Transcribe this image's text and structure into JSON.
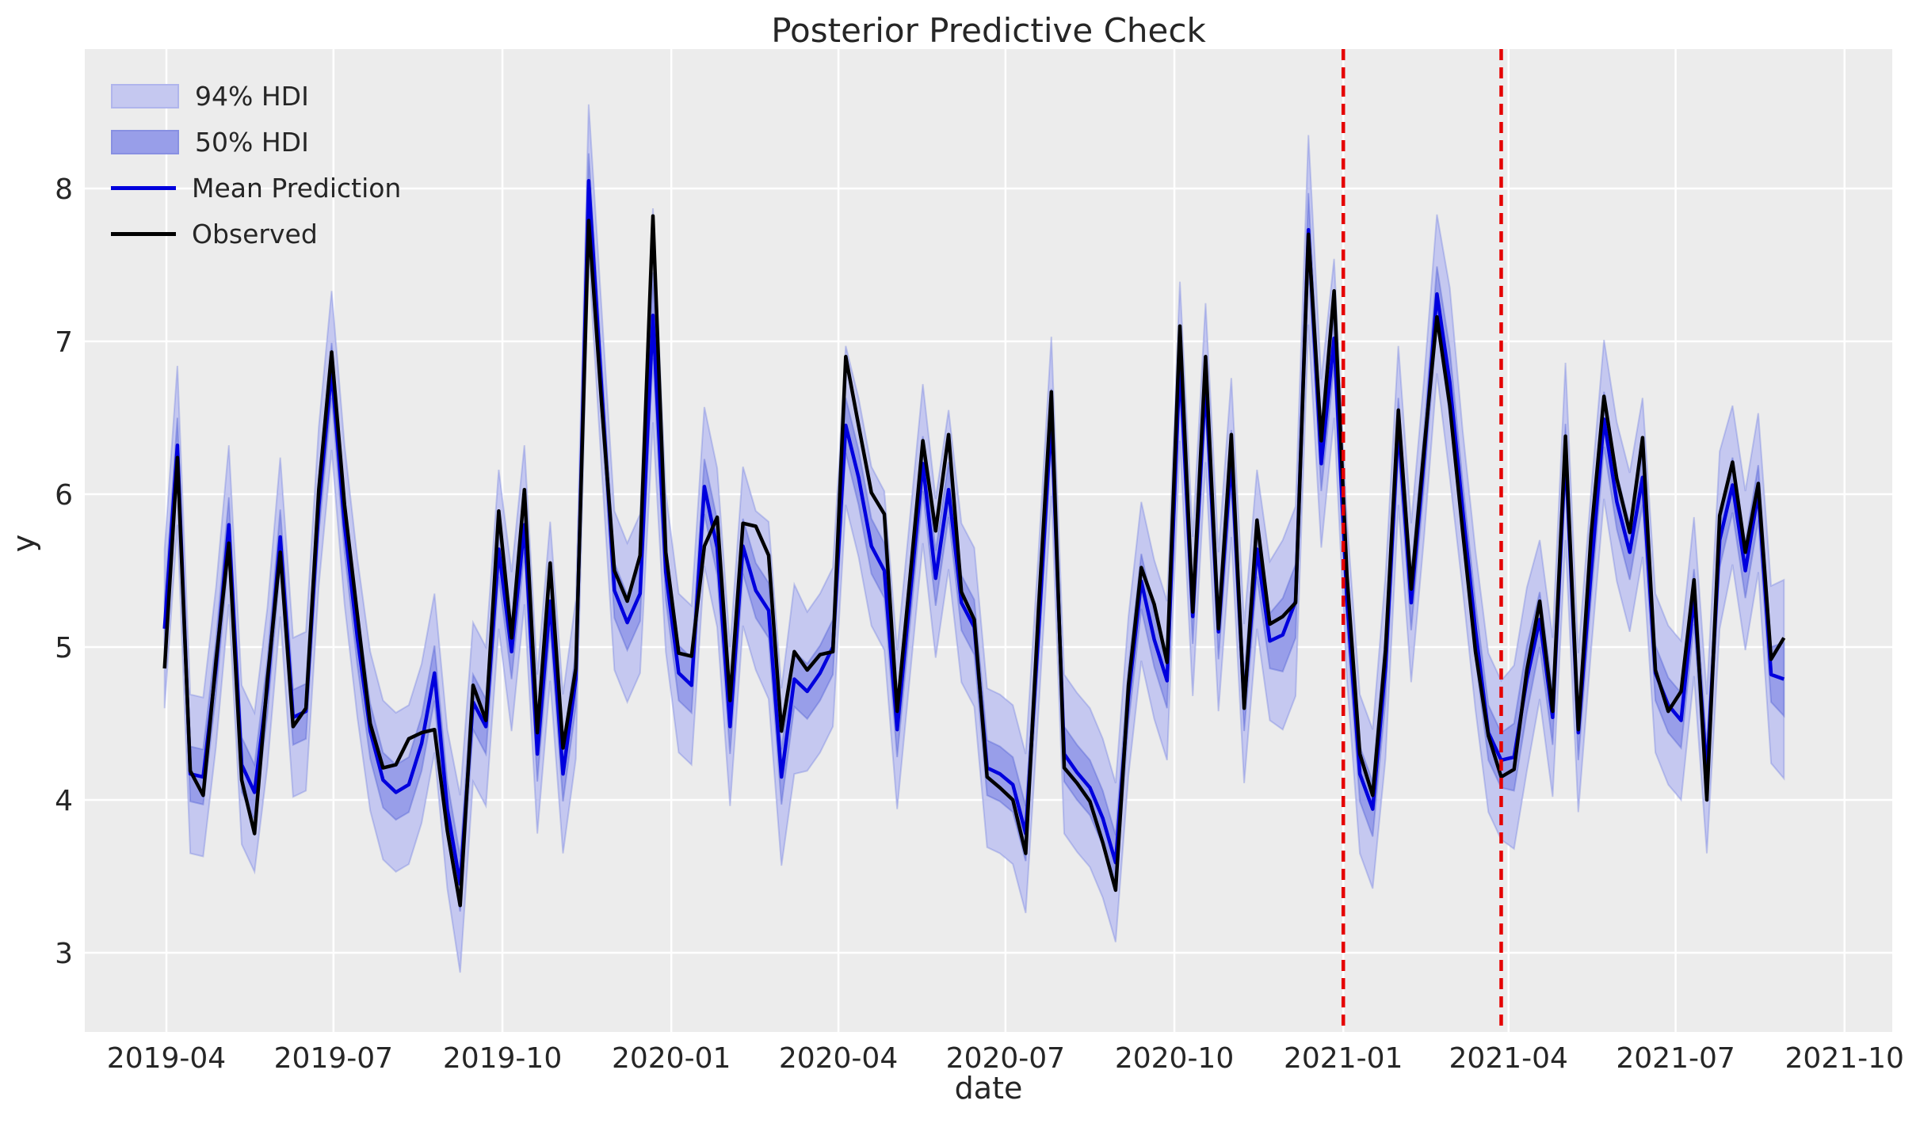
{
  "title": "Posterior Predictive Check",
  "axes": {
    "xlabel": "date",
    "ylabel": "y",
    "x_tick_labels": [
      "2019-04",
      "2019-07",
      "2019-10",
      "2020-01",
      "2020-04",
      "2020-07",
      "2020-10",
      "2021-01",
      "2021-04",
      "2021-07",
      "2021-10"
    ],
    "y_tick_labels": [
      "3",
      "4",
      "5",
      "6",
      "7",
      "8"
    ]
  },
  "legend": {
    "items": [
      {
        "label": "94% HDI",
        "type": "band",
        "fill": "#c5c8f0",
        "edge": "#b0b5ec"
      },
      {
        "label": "50% HDI",
        "type": "band",
        "fill": "#989ee9",
        "edge": "#8890e2"
      },
      {
        "label": "Mean Prediction",
        "type": "line",
        "color": "#0000dd"
      },
      {
        "label": "Observed",
        "type": "line",
        "color": "#000000"
      }
    ]
  },
  "colors": {
    "plot_bg": "#ececec",
    "grid": "#ffffff",
    "observed": "#000000",
    "mean": "#0000dd",
    "hdi94_fill": "#c5c8f0",
    "hdi94_edge": "rgba(90,105,220,0.30)",
    "hdi50_fill": "#989ee9",
    "hdi50_edge": "rgba(70,85,210,0.35)",
    "vline": "#e50000",
    "text": "#262626"
  },
  "chart_data": {
    "type": "line",
    "title": "Posterior Predictive Check",
    "xlabel": "date",
    "ylabel": "y",
    "grid": true,
    "legend_position": "upper left",
    "ylim": [
      2.48,
      8.91
    ],
    "y_ticks": [
      3,
      4,
      5,
      6,
      7,
      8
    ],
    "x_tick_labels": [
      "2019-04",
      "2019-07",
      "2019-10",
      "2020-01",
      "2020-04",
      "2020-07",
      "2020-10",
      "2021-01",
      "2021-04",
      "2021-07",
      "2021-10"
    ],
    "x_tick_day_offsets": [
      1,
      92,
      184,
      276,
      367,
      458,
      550,
      642,
      732,
      823,
      915
    ],
    "x_start_date": "2019-03-31",
    "x_end_date": "2021-08-29",
    "x_freq_days": 7,
    "n_points": 127,
    "vlines": [
      {
        "date": "2021-01-01",
        "day_offset": 642,
        "color": "#e50000",
        "style": "dashed"
      },
      {
        "date": "2021-03-28",
        "day_offset": 728,
        "color": "#e50000",
        "style": "dashed"
      }
    ],
    "series": [
      {
        "name": "Observed",
        "color": "#000000",
        "values": [
          4.86,
          6.24,
          4.19,
          4.03,
          4.91,
          5.68,
          4.13,
          3.78,
          4.79,
          5.62,
          4.48,
          4.6,
          6.03,
          6.93,
          5.93,
          5.21,
          4.5,
          4.21,
          4.23,
          4.4,
          4.44,
          4.46,
          3.8,
          3.31,
          4.75,
          4.52,
          5.89,
          5.06,
          6.03,
          4.44,
          5.55,
          4.34,
          4.86,
          7.79,
          6.6,
          5.5,
          5.3,
          5.6,
          7.82,
          5.62,
          4.96,
          4.94,
          5.66,
          5.85,
          4.65,
          5.81,
          5.79,
          5.6,
          4.45,
          4.97,
          4.85,
          4.95,
          4.97,
          6.9,
          6.45,
          6.01,
          5.87,
          4.58,
          5.45,
          6.35,
          5.76,
          6.39,
          5.36,
          5.18,
          4.15,
          4.08,
          4.0,
          3.65,
          5.25,
          6.67,
          4.21,
          4.11,
          3.99,
          3.72,
          3.41,
          4.75,
          5.52,
          5.28,
          4.9,
          7.1,
          5.23,
          6.9,
          5.12,
          6.39,
          4.6,
          5.83,
          5.15,
          5.2,
          5.29,
          7.7,
          6.35,
          7.33,
          5.47,
          4.3,
          4.03,
          4.98,
          6.55,
          5.38,
          6.3,
          7.16,
          6.58,
          5.76,
          4.97,
          4.42,
          4.15,
          4.2,
          4.85,
          5.3,
          4.58,
          6.38,
          4.46,
          5.74,
          6.64,
          6.1,
          5.75,
          6.37,
          4.85,
          4.58,
          4.71,
          5.44,
          4.0,
          5.86,
          6.21,
          5.62,
          6.07,
          4.92,
          5.06
        ]
      },
      {
        "name": "Mean Prediction",
        "color": "#0000dd",
        "values": [
          5.12,
          6.32,
          4.17,
          4.15,
          4.87,
          5.8,
          4.23,
          4.05,
          4.74,
          5.72,
          4.54,
          4.58,
          5.92,
          6.81,
          5.8,
          5.06,
          4.45,
          4.13,
          4.05,
          4.1,
          4.37,
          4.83,
          3.94,
          3.45,
          4.64,
          4.48,
          5.64,
          4.97,
          5.8,
          4.3,
          5.3,
          4.17,
          4.79,
          8.05,
          6.7,
          5.37,
          5.16,
          5.35,
          7.17,
          5.49,
          4.83,
          4.75,
          6.05,
          5.65,
          4.48,
          5.66,
          5.37,
          5.24,
          4.15,
          4.79,
          4.71,
          4.83,
          5.0,
          6.45,
          6.11,
          5.66,
          5.5,
          4.46,
          5.33,
          6.2,
          5.45,
          6.03,
          5.29,
          5.13,
          4.21,
          4.17,
          4.1,
          3.78,
          5.1,
          6.51,
          4.3,
          4.18,
          4.08,
          3.88,
          3.59,
          4.68,
          5.43,
          5.05,
          4.78,
          6.87,
          5.2,
          6.73,
          5.1,
          6.24,
          4.63,
          5.64,
          5.04,
          5.08,
          5.3,
          7.73,
          6.2,
          7.02,
          5.31,
          4.17,
          3.94,
          4.87,
          6.45,
          5.29,
          6.24,
          7.31,
          6.73,
          5.9,
          5.11,
          4.44,
          4.26,
          4.28,
          4.79,
          5.18,
          4.54,
          6.28,
          4.44,
          5.5,
          6.49,
          5.95,
          5.62,
          6.11,
          4.83,
          4.62,
          4.52,
          5.33,
          4.17,
          5.7,
          6.06,
          5.5,
          6.01,
          4.82,
          4.79
        ]
      }
    ],
    "bands": [
      {
        "name": "94% HDI",
        "center": "Mean Prediction",
        "halfwidths": [
          0.52,
          0.52,
          0.52,
          0.52,
          0.52,
          0.52,
          0.52,
          0.52,
          0.52,
          0.52,
          0.52,
          0.52,
          0.52,
          0.52,
          0.52,
          0.52,
          0.52,
          0.52,
          0.52,
          0.52,
          0.52,
          0.52,
          0.52,
          0.58,
          0.52,
          0.52,
          0.52,
          0.52,
          0.52,
          0.52,
          0.52,
          0.52,
          0.52,
          0.5,
          0.52,
          0.52,
          0.52,
          0.52,
          0.7,
          0.52,
          0.52,
          0.52,
          0.52,
          0.52,
          0.52,
          0.52,
          0.52,
          0.58,
          0.58,
          0.62,
          0.52,
          0.52,
          0.52,
          0.52,
          0.52,
          0.52,
          0.52,
          0.52,
          0.52,
          0.52,
          0.52,
          0.52,
          0.52,
          0.52,
          0.52,
          0.52,
          0.52,
          0.52,
          0.52,
          0.52,
          0.52,
          0.52,
          0.52,
          0.52,
          0.52,
          0.52,
          0.52,
          0.52,
          0.52,
          0.52,
          0.52,
          0.52,
          0.52,
          0.52,
          0.52,
          0.52,
          0.52,
          0.62,
          0.62,
          0.62,
          0.55,
          0.52,
          0.52,
          0.52,
          0.52,
          0.6,
          0.52,
          0.52,
          0.52,
          0.52,
          0.62,
          0.52,
          0.52,
          0.52,
          0.52,
          0.6,
          0.6,
          0.52,
          0.52,
          0.58,
          0.52,
          0.52,
          0.52,
          0.52,
          0.52,
          0.52,
          0.52,
          0.52,
          0.52,
          0.52,
          0.52,
          0.58,
          0.52,
          0.52,
          0.52,
          0.58,
          0.65
        ]
      },
      {
        "name": "50% HDI",
        "center": "Mean Prediction",
        "halfwidths": [
          0.18,
          0.18,
          0.18,
          0.18,
          0.18,
          0.18,
          0.18,
          0.18,
          0.18,
          0.18,
          0.18,
          0.18,
          0.18,
          0.18,
          0.18,
          0.18,
          0.18,
          0.18,
          0.18,
          0.18,
          0.18,
          0.18,
          0.18,
          0.18,
          0.18,
          0.18,
          0.18,
          0.18,
          0.18,
          0.18,
          0.18,
          0.18,
          0.18,
          0.18,
          0.18,
          0.18,
          0.18,
          0.18,
          0.28,
          0.18,
          0.18,
          0.18,
          0.18,
          0.18,
          0.18,
          0.18,
          0.18,
          0.18,
          0.18,
          0.18,
          0.18,
          0.18,
          0.18,
          0.18,
          0.18,
          0.18,
          0.18,
          0.18,
          0.18,
          0.18,
          0.18,
          0.18,
          0.18,
          0.18,
          0.18,
          0.18,
          0.18,
          0.18,
          0.18,
          0.18,
          0.18,
          0.18,
          0.18,
          0.18,
          0.18,
          0.18,
          0.18,
          0.18,
          0.18,
          0.18,
          0.18,
          0.18,
          0.18,
          0.18,
          0.18,
          0.18,
          0.18,
          0.24,
          0.24,
          0.24,
          0.18,
          0.18,
          0.18,
          0.18,
          0.18,
          0.22,
          0.18,
          0.18,
          0.18,
          0.18,
          0.22,
          0.18,
          0.18,
          0.18,
          0.18,
          0.22,
          0.22,
          0.18,
          0.18,
          0.18,
          0.18,
          0.18,
          0.18,
          0.18,
          0.18,
          0.18,
          0.18,
          0.18,
          0.18,
          0.18,
          0.18,
          0.18,
          0.18,
          0.18,
          0.18,
          0.18,
          0.24
        ]
      }
    ]
  }
}
